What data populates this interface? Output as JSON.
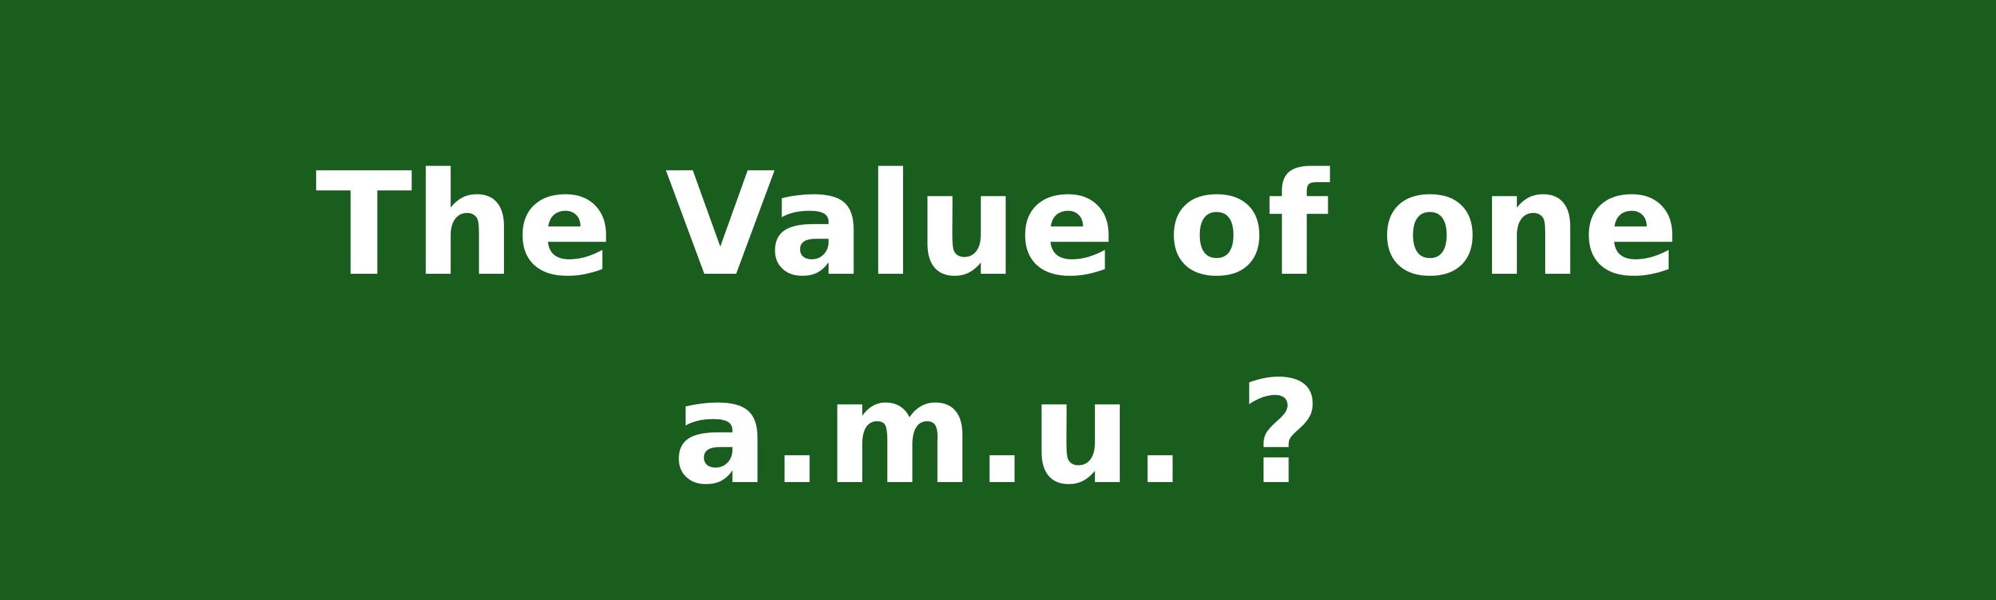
{
  "slide": {
    "title_line_1": "The Value of one",
    "title_line_2": "a.m.u. ?",
    "background_color": "#1a5e1f",
    "text_color": "#ffffff"
  }
}
